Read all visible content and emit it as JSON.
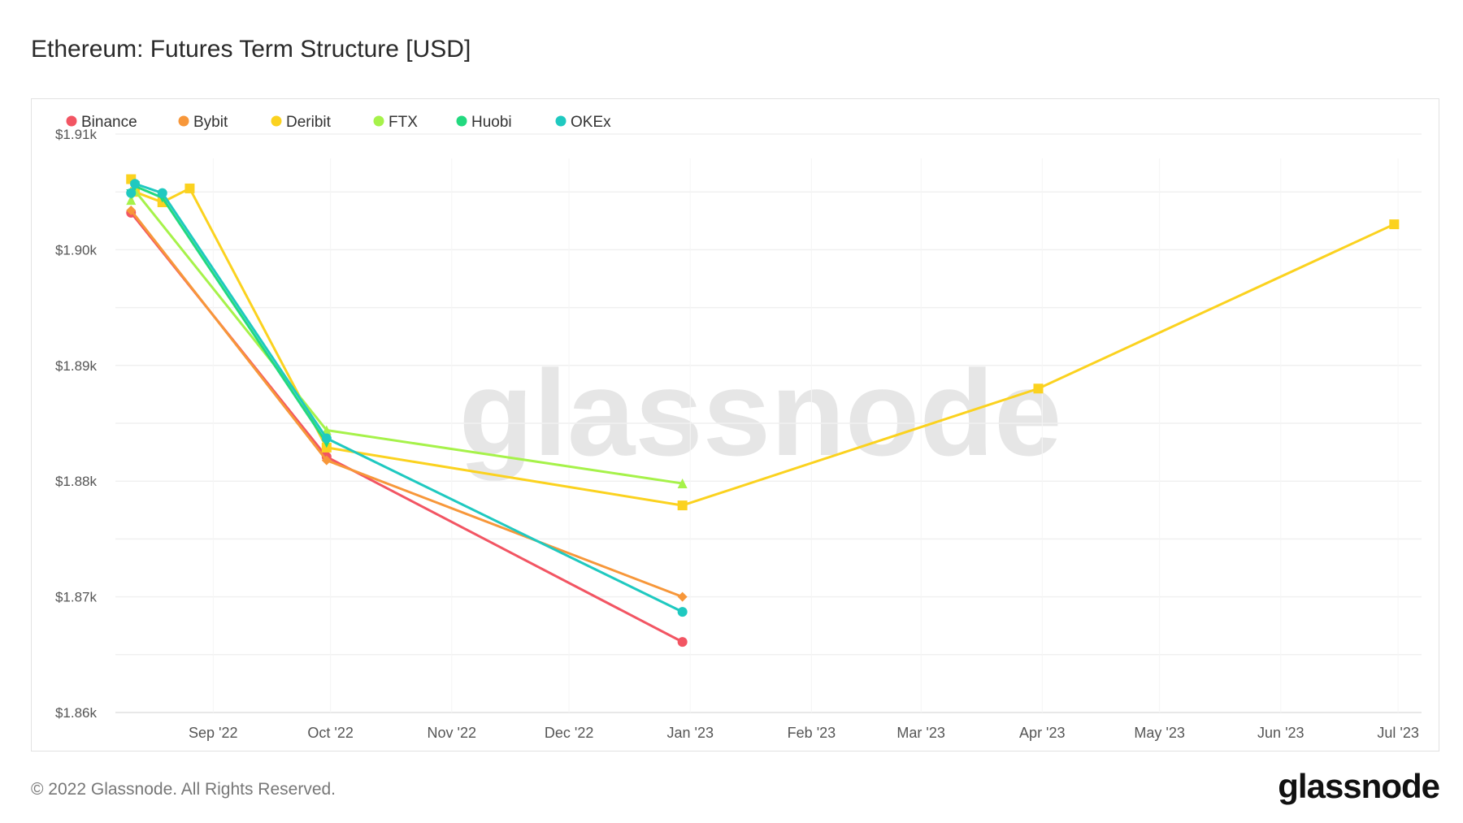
{
  "chart_data": {
    "type": "line",
    "title": "Ethereum: Futures Term Structure [USD]",
    "xlabel": "",
    "ylabel": "",
    "x_type": "date",
    "xlim": [
      "2022-08-07",
      "2023-07-07"
    ],
    "ylim": [
      1860,
      1910
    ],
    "y_ticks": [
      1860,
      1870,
      1880,
      1890,
      1900,
      1910
    ],
    "y_tick_labels": [
      "$1.86k",
      "$1.87k",
      "$1.88k",
      "$1.89k",
      "$1.90k",
      "$1.91k"
    ],
    "x_ticks": [
      "2022-09-01",
      "2022-10-01",
      "2022-11-01",
      "2022-12-01",
      "2023-01-01",
      "2023-02-01",
      "2023-03-01",
      "2023-04-01",
      "2023-05-01",
      "2023-06-01",
      "2023-07-01"
    ],
    "x_tick_labels": [
      "Sep '22",
      "Oct '22",
      "Nov '22",
      "Dec '22",
      "Jan '23",
      "Feb '23",
      "Mar '23",
      "Apr '23",
      "May '23",
      "Jun '23",
      "Jul '23"
    ],
    "grid": true,
    "legend_position": "top-left",
    "watermark": "glassnode",
    "series": [
      {
        "name": "Binance",
        "color": "#f25563",
        "marker": "circle",
        "x": [
          "2022-08-11",
          "2022-09-30",
          "2022-12-30"
        ],
        "y": [
          1903.2,
          1882.1,
          1866.1
        ]
      },
      {
        "name": "Bybit",
        "color": "#f7973a",
        "marker": "diamond",
        "x": [
          "2022-08-11",
          "2022-09-30",
          "2022-12-30"
        ],
        "y": [
          1903.4,
          1881.8,
          1870.0
        ]
      },
      {
        "name": "Deribit",
        "color": "#fbd21f",
        "marker": "square",
        "x": [
          "2022-08-11",
          "2022-08-12",
          "2022-08-19",
          "2022-08-26",
          "2022-09-30",
          "2022-12-30",
          "2023-03-31",
          "2023-06-30"
        ],
        "y": [
          1906.1,
          1905.0,
          1904.1,
          1905.3,
          1882.9,
          1877.9,
          1888.0,
          1902.2
        ]
      },
      {
        "name": "FTX",
        "color": "#a6f24a",
        "marker": "triangle",
        "x": [
          "2022-08-11",
          "2022-08-12",
          "2022-09-30",
          "2022-12-30"
        ],
        "y": [
          1904.3,
          1905.1,
          1884.4,
          1879.8
        ]
      },
      {
        "name": "Huobi",
        "color": "#22d97f",
        "marker": "triangle-down",
        "x": [
          "2022-08-11",
          "2022-08-12",
          "2022-08-19",
          "2022-09-30"
        ],
        "y": [
          1904.8,
          1905.5,
          1904.5,
          1883.3
        ]
      },
      {
        "name": "OKEx",
        "color": "#1fc9c0",
        "marker": "circle",
        "x": [
          "2022-08-11",
          "2022-08-12",
          "2022-08-19",
          "2022-09-30",
          "2022-12-30"
        ],
        "y": [
          1904.9,
          1905.7,
          1904.9,
          1883.7,
          1868.7
        ]
      }
    ]
  },
  "footer": {
    "copyright": "© 2022 Glassnode. All Rights Reserved.",
    "logo": "glassnode"
  }
}
